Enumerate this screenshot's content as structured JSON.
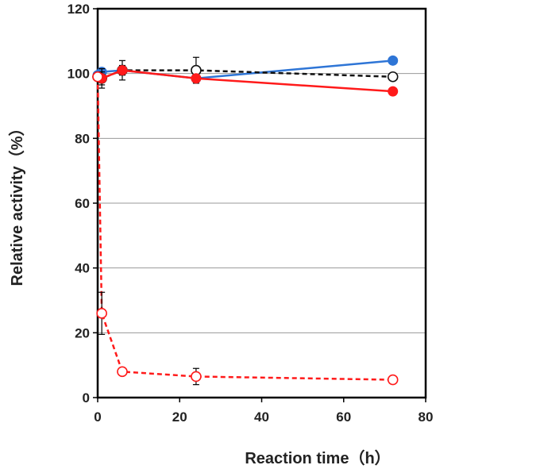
{
  "chart_data": {
    "type": "line",
    "title": "",
    "xlabel": "Reaction time（h）",
    "ylabel": "Relative activity（%）",
    "xlim": [
      0,
      80
    ],
    "ylim": [
      0,
      120
    ],
    "x_ticks": [
      "0",
      "20",
      "40",
      "60",
      "80"
    ],
    "y_ticks": [
      "0",
      "20",
      "40",
      "60",
      "80",
      "100",
      "120"
    ],
    "grid": "horizontal",
    "legend": "none",
    "series": [
      {
        "color": "#2e75d6",
        "marker": "filled-circle",
        "line": "solid",
        "x": [
          0,
          1,
          6,
          24,
          72
        ],
        "y": [
          99.5,
          100.5,
          101,
          98.5,
          104
        ]
      },
      {
        "color": "#111111",
        "marker": "open-circle",
        "line": "dashed",
        "x": [
          0,
          1,
          6,
          24,
          72
        ],
        "y": [
          99,
          98.5,
          101,
          101,
          99
        ],
        "err": [
          0,
          3,
          3,
          4,
          0
        ]
      },
      {
        "color": "#ff1a1a",
        "marker": "filled-circle",
        "line": "solid",
        "x": [
          0,
          1,
          6,
          24,
          72
        ],
        "y": [
          99,
          98.5,
          101,
          98.5,
          94.5
        ],
        "err": [
          0,
          2,
          1.5,
          1,
          0
        ]
      },
      {
        "color": "#ff1a1a",
        "marker": "open-circle",
        "line": "dashed",
        "x": [
          0,
          1,
          6,
          24,
          72
        ],
        "y": [
          99,
          26,
          8,
          6.5,
          5.5
        ],
        "err": [
          0,
          6.5,
          0.5,
          2.5,
          0
        ]
      }
    ]
  }
}
